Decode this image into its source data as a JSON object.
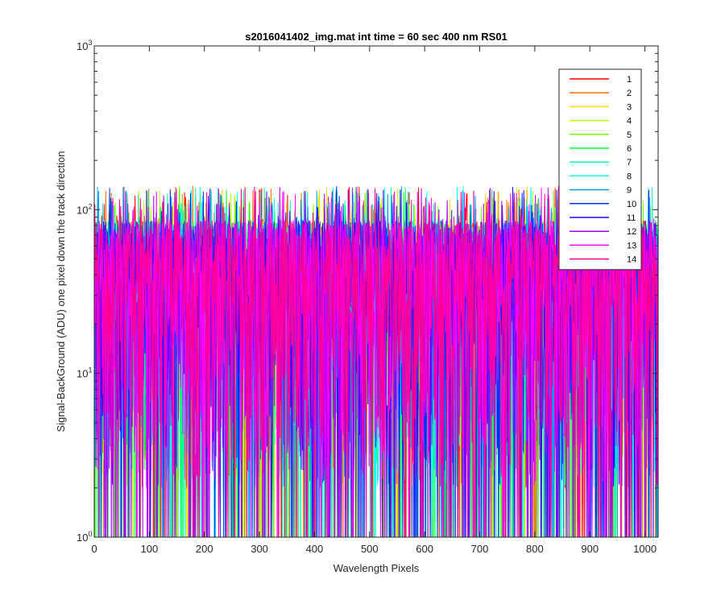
{
  "chart_data": {
    "type": "line",
    "title": "s2016041402_img.mat int time = 60 sec  400 nm RS01",
    "xlabel": "Wavelength Pixels",
    "ylabel": "Signal-BackGround (ADU) one pixel down the track direction",
    "xlim": [
      0,
      1024
    ],
    "ylim": [
      1,
      1000
    ],
    "yscale": "log",
    "xticks": [
      0,
      100,
      200,
      300,
      400,
      500,
      600,
      700,
      800,
      900,
      1000
    ],
    "xtick_labels": [
      "0",
      "100",
      "200",
      "300",
      "400",
      "500",
      "600",
      "700",
      "800",
      "900",
      "1000"
    ],
    "yticks": [
      {
        "value": 1,
        "base": "10",
        "exp": "0"
      },
      {
        "value": 10,
        "base": "10",
        "exp": "1"
      },
      {
        "value": 100,
        "base": "10",
        "exp": "2"
      },
      {
        "value": 1000,
        "base": "10",
        "exp": "3"
      }
    ],
    "legend_position": "top-right",
    "grid": false,
    "series": [
      {
        "name": "1",
        "color": "#ff0000"
      },
      {
        "name": "2",
        "color": "#ff6e00"
      },
      {
        "name": "3",
        "color": "#ffdc00"
      },
      {
        "name": "4",
        "color": "#b4ff00"
      },
      {
        "name": "5",
        "color": "#6eff00"
      },
      {
        "name": "6",
        "color": "#00ff32"
      },
      {
        "name": "7",
        "color": "#00ffb4"
      },
      {
        "name": "8",
        "color": "#00ffff"
      },
      {
        "name": "9",
        "color": "#00a0ff"
      },
      {
        "name": "10",
        "color": "#0032ff"
      },
      {
        "name": "11",
        "color": "#3200ff"
      },
      {
        "name": "12",
        "color": "#a000ff"
      },
      {
        "name": "13",
        "color": "#ff00ff"
      },
      {
        "name": "14",
        "color": "#ff0096"
      }
    ]
  }
}
